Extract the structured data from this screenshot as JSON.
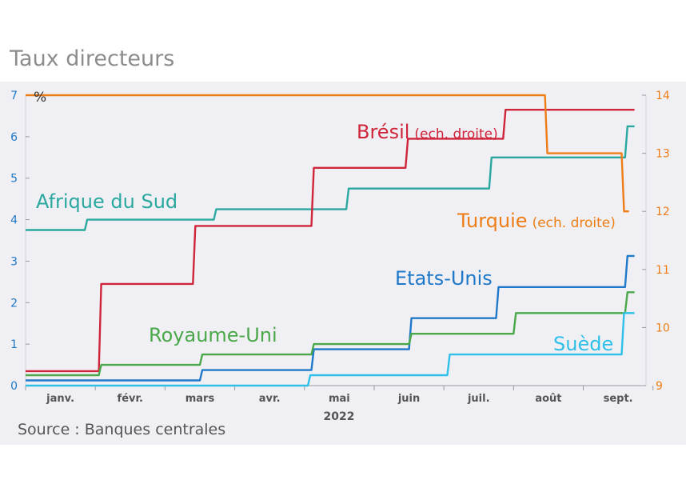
{
  "chart_data": {
    "type": "line",
    "step": true,
    "title": "Taux directeurs",
    "source": "Source : Banques centrales",
    "unit_label": "%",
    "x_year_label": "2022",
    "x_ticks": [
      "janv.",
      "févr.",
      "mars",
      "avr.",
      "mai",
      "juin",
      "juil.",
      "août",
      "sept."
    ],
    "x_range": [
      0,
      8.9
    ],
    "y_left": {
      "range": [
        0,
        7
      ],
      "ticks": [
        "0",
        "1",
        "2",
        "3",
        "4",
        "5",
        "6",
        "7"
      ],
      "color": "#1f78c8"
    },
    "y_right": {
      "range": [
        9,
        14
      ],
      "ticks": [
        "9",
        "10",
        "11",
        "12",
        "13",
        "14"
      ],
      "color": "#ee7d16"
    },
    "grid": false,
    "series": [
      {
        "name": "Afrique du Sud",
        "label": "Afrique du Sud",
        "axis": "left",
        "color": "#2aa8a0",
        "x": [
          0,
          0.85,
          2.7,
          4.6,
          6.65,
          8.6,
          8.7
        ],
        "y": [
          3.75,
          4.0,
          4.25,
          4.75,
          5.5,
          6.25,
          6.25
        ]
      },
      {
        "name": "Brésil",
        "label": "Brésil",
        "label_suffix": "(ech. droite)",
        "axis": "right",
        "color": "#cf2439",
        "x": [
          0,
          1.05,
          2.4,
          4.1,
          5.45,
          6.85,
          8.7
        ],
        "y": [
          9.25,
          10.75,
          11.75,
          12.75,
          13.25,
          13.75,
          13.75
        ]
      },
      {
        "name": "Turquie",
        "label": "Turquie",
        "label_suffix": "(ech. droite)",
        "axis": "right",
        "color": "#ee7d16",
        "x": [
          0,
          7.45,
          8.55,
          8.62
        ],
        "y": [
          14.0,
          13.0,
          12.0,
          12.0
        ]
      },
      {
        "name": "Etats-Unis",
        "label": "Etats-Unis",
        "axis": "left",
        "color": "#1f78c8",
        "x": [
          0,
          2.5,
          4.1,
          5.5,
          6.75,
          8.6,
          8.7
        ],
        "y": [
          0.125,
          0.375,
          0.875,
          1.625,
          2.375,
          3.125,
          3.125
        ]
      },
      {
        "name": "Royaume-Uni",
        "label": "Royaume-Uni",
        "axis": "left",
        "color": "#4aa84a",
        "x": [
          0,
          1.05,
          2.5,
          4.1,
          5.5,
          7.0,
          8.6,
          8.7
        ],
        "y": [
          0.25,
          0.5,
          0.75,
          1.0,
          1.25,
          1.75,
          2.25,
          2.25
        ]
      },
      {
        "name": "Suède",
        "label": "Suède",
        "axis": "left",
        "color": "#2ec0e8",
        "x": [
          0,
          4.05,
          6.05,
          8.55,
          8.7
        ],
        "y": [
          0,
          0.25,
          0.75,
          1.75,
          1.75
        ]
      }
    ]
  }
}
